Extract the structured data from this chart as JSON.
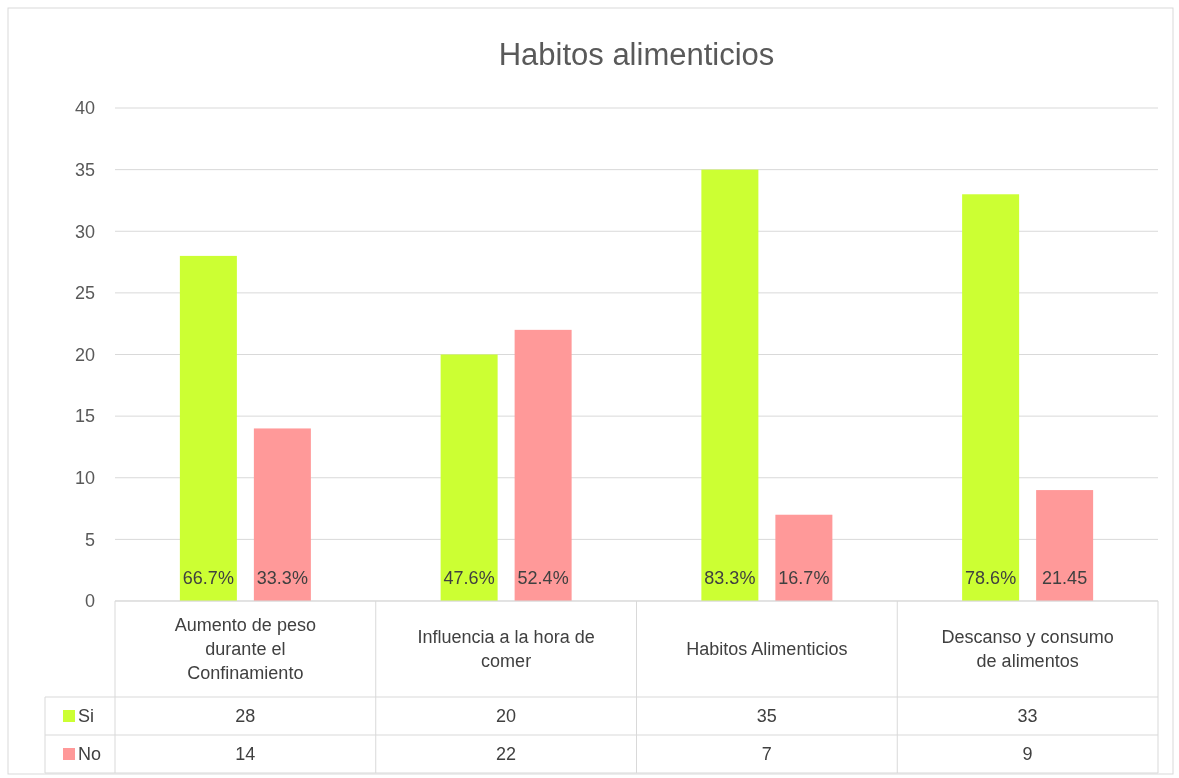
{
  "chart_data": {
    "type": "bar",
    "title": "Habitos alimenticios",
    "categories": [
      "Aumento de peso durante el Confinamiento",
      "Influencia a la hora de comer",
      "Habitos Alimenticios",
      "Descanso y consumo de alimentos"
    ],
    "series": [
      {
        "name": "Si",
        "color": "#ccff33",
        "values": [
          28,
          20,
          35,
          33
        ],
        "value_labels": [
          "28",
          "20",
          "35",
          "33"
        ]
      },
      {
        "name": "No",
        "color": "#ff9999",
        "values": [
          14,
          22,
          7,
          9
        ],
        "value_labels": [
          "14",
          "22",
          "7",
          "9"
        ]
      }
    ],
    "annotations": [
      "66.7%",
      "47.6%",
      "83.3%",
      "78.6%",
      "33.3%",
      "52.4%",
      "16.7%",
      "21.45"
    ],
    "ylim": [
      0,
      40
    ],
    "yticks": [
      0,
      5,
      10,
      15,
      20,
      25,
      30,
      35,
      40
    ],
    "grid": "y",
    "legend": "bottom"
  }
}
